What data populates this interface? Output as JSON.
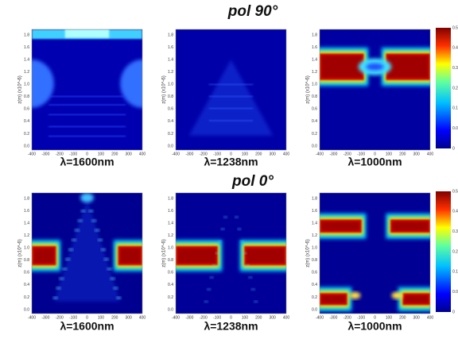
{
  "rows": [
    {
      "title": "pol  90°",
      "panels": [
        {
          "label": "λ=1600nm"
        },
        {
          "label": "λ=1238nm"
        },
        {
          "label": "λ=1000nm"
        }
      ],
      "colorbar_ticks": [
        "0.5",
        "0.41",
        "0.33",
        "0.25",
        "0.16",
        "0.08",
        "0"
      ]
    },
    {
      "title": "pol  0°",
      "panels": [
        {
          "label": "λ=1600nm"
        },
        {
          "label": "λ=1238nm"
        },
        {
          "label": "λ=1000nm"
        }
      ],
      "colorbar_ticks": [
        "0.5",
        "0.41",
        "0.33",
        "0.25",
        "0.16",
        "0.08",
        "0"
      ]
    }
  ],
  "y_axis_label": "z(m) (x10^-6)",
  "x_ticks": [
    "-400",
    "-300",
    "-200",
    "-100",
    "0",
    "100",
    "200",
    "300",
    "400"
  ],
  "y_ticks": [
    "0.0",
    "0.2",
    "0.4",
    "0.6",
    "0.8",
    "1.0",
    "1.2",
    "1.4",
    "1.6",
    "1.8"
  ]
}
